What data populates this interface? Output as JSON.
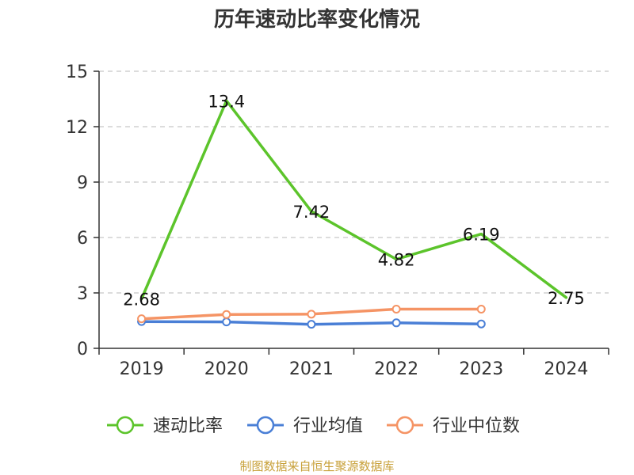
{
  "chart_data": {
    "type": "line",
    "title": "历年速动比率变化情况",
    "categories": [
      "2019",
      "2020",
      "2021",
      "2022",
      "2023",
      "2024"
    ],
    "ylim": [
      0,
      15
    ],
    "yticks": [
      0,
      3,
      6,
      9,
      12,
      15
    ],
    "grid": true,
    "legend_position": "bottom",
    "series": [
      {
        "name": "速动比率",
        "color": "#5cc42b",
        "values": [
          2.68,
          13.4,
          7.42,
          4.82,
          6.19,
          2.75
        ],
        "labels": [
          "2.68",
          "13.4",
          "7.42",
          "4.82",
          "6.19",
          "2.75"
        ],
        "markers": false
      },
      {
        "name": "行业均值",
        "color": "#4a7fd6",
        "values": [
          1.45,
          1.43,
          1.3,
          1.38,
          1.32,
          null
        ],
        "markers": true
      },
      {
        "name": "行业中位数",
        "color": "#f59465",
        "values": [
          1.6,
          1.83,
          1.85,
          2.12,
          2.12,
          null
        ],
        "markers": true
      }
    ],
    "source": "制图数据来自恒生聚源数据库"
  }
}
